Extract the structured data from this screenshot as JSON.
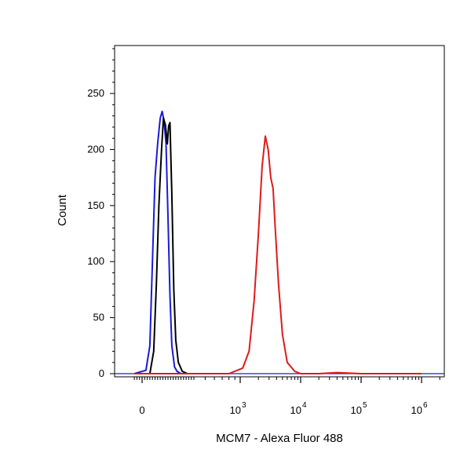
{
  "chart_data": {
    "type": "line",
    "title": "",
    "xlabel": "MCM7 - Alexa Fluor 488",
    "ylabel": "Count",
    "xscale": "biexponential",
    "ylim": [
      0,
      290
    ],
    "y_ticks": [
      0,
      50,
      100,
      150,
      200,
      250
    ],
    "x_ticks": [
      {
        "value": 0,
        "base": "0",
        "exp": ""
      },
      {
        "value": 1000,
        "base": "10",
        "exp": "3"
      },
      {
        "value": 10000,
        "base": "10",
        "exp": "4"
      },
      {
        "value": 100000,
        "base": "10",
        "exp": "5"
      },
      {
        "value": 1000000,
        "base": "10",
        "exp": "6"
      }
    ],
    "grid": false,
    "legend": "none",
    "series": [
      {
        "color": "#1a1adb",
        "x": [
          -60,
          30,
          60,
          80,
          100,
          120,
          140,
          155,
          170,
          185,
          200,
          215,
          230,
          250,
          270,
          300,
          340,
          400
        ],
        "y": [
          0,
          3,
          25,
          100,
          175,
          205,
          228,
          234,
          225,
          205,
          140,
          70,
          25,
          6,
          2,
          0,
          0,
          0
        ]
      },
      {
        "color": "#000000",
        "x": [
          -60,
          60,
          90,
          110,
          130,
          150,
          165,
          180,
          195,
          205,
          215,
          230,
          245,
          260,
          280,
          310,
          350,
          400
        ],
        "y": [
          0,
          0,
          20,
          80,
          150,
          200,
          228,
          222,
          205,
          221,
          224,
          160,
          75,
          30,
          10,
          2,
          0,
          0
        ]
      },
      {
        "color": "#e01a1a",
        "x": [
          -60,
          400,
          800,
          1100,
          1400,
          1700,
          2000,
          2300,
          2600,
          2900,
          3200,
          3500,
          3800,
          4300,
          5000,
          6000,
          8000,
          10000,
          20000,
          40000,
          100000,
          300000,
          1000000
        ],
        "y": [
          0,
          0,
          0,
          5,
          20,
          65,
          125,
          185,
          212,
          200,
          175,
          165,
          130,
          80,
          35,
          10,
          2,
          0,
          0,
          1,
          0,
          0,
          0
        ]
      }
    ]
  }
}
